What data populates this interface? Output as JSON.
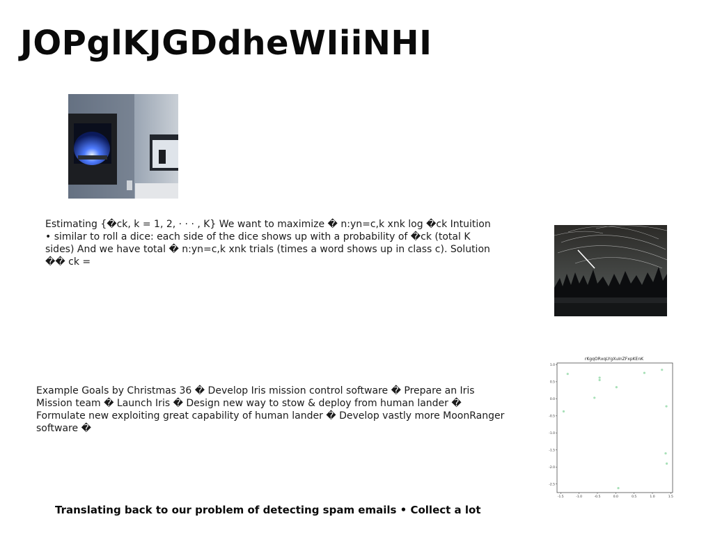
{
  "slide": {
    "title": "JOPglKJGDdheWIiiNHI",
    "paragraph1": "Estimating {�ck, k = 1, 2, · · · , K} We want to maximize � n:yn=c,k xnk log �ck Intuition • similar to roll a dice: each side of the dice shows up with a probability of �ck (total K sides) And we have total � n:yn=c,k xnk trials (times a word shows up in class c). Solution �� ck =",
    "paragraph2": "Example Goals by Christmas 36 � Develop Iris mission control software � Prepare an Iris Mission team � Launch Iris � Design new way to stow & deploy from human lander � Formulate new exploiting great capability of human lander � Develop vastly more MoonRanger software �",
    "paragraph3": "Translating back to our problem of detecting spam emails • Collect a lot"
  },
  "images": {
    "fireplace": "photo of a modern fireplace with blue flames",
    "startrails": "photo of star trails over a forest",
    "scatter_plot": "scatter plot thumbnail"
  },
  "chart_data": {
    "type": "scatter",
    "title": "rKgqORxqLYgXuInZFxpKEnK",
    "xlabel": "",
    "ylabel": "",
    "xlim": [
      -1.6,
      1.55
    ],
    "ylim": [
      -2.75,
      1.05
    ],
    "xticks": [
      "-1.5",
      "-1.0",
      "-0.5",
      "0.0",
      "0.5",
      "1.0",
      "1.5"
    ],
    "yticks": [
      "1.0",
      "0.5",
      "0.0",
      "-0.5",
      "-1.0",
      "-1.5",
      "-2.0",
      "-2.5"
    ],
    "x": [
      -1.31,
      -1.42,
      -0.58,
      -0.44,
      -0.44,
      0.02,
      0.07,
      0.78,
      1.26,
      1.38,
      1.36,
      1.39
    ],
    "y": [
      0.73,
      -0.37,
      0.03,
      0.55,
      0.62,
      0.34,
      -2.62,
      0.76,
      0.85,
      -0.22,
      -1.6,
      -1.9
    ],
    "point_color": "#a8e0b8",
    "grid": false
  }
}
